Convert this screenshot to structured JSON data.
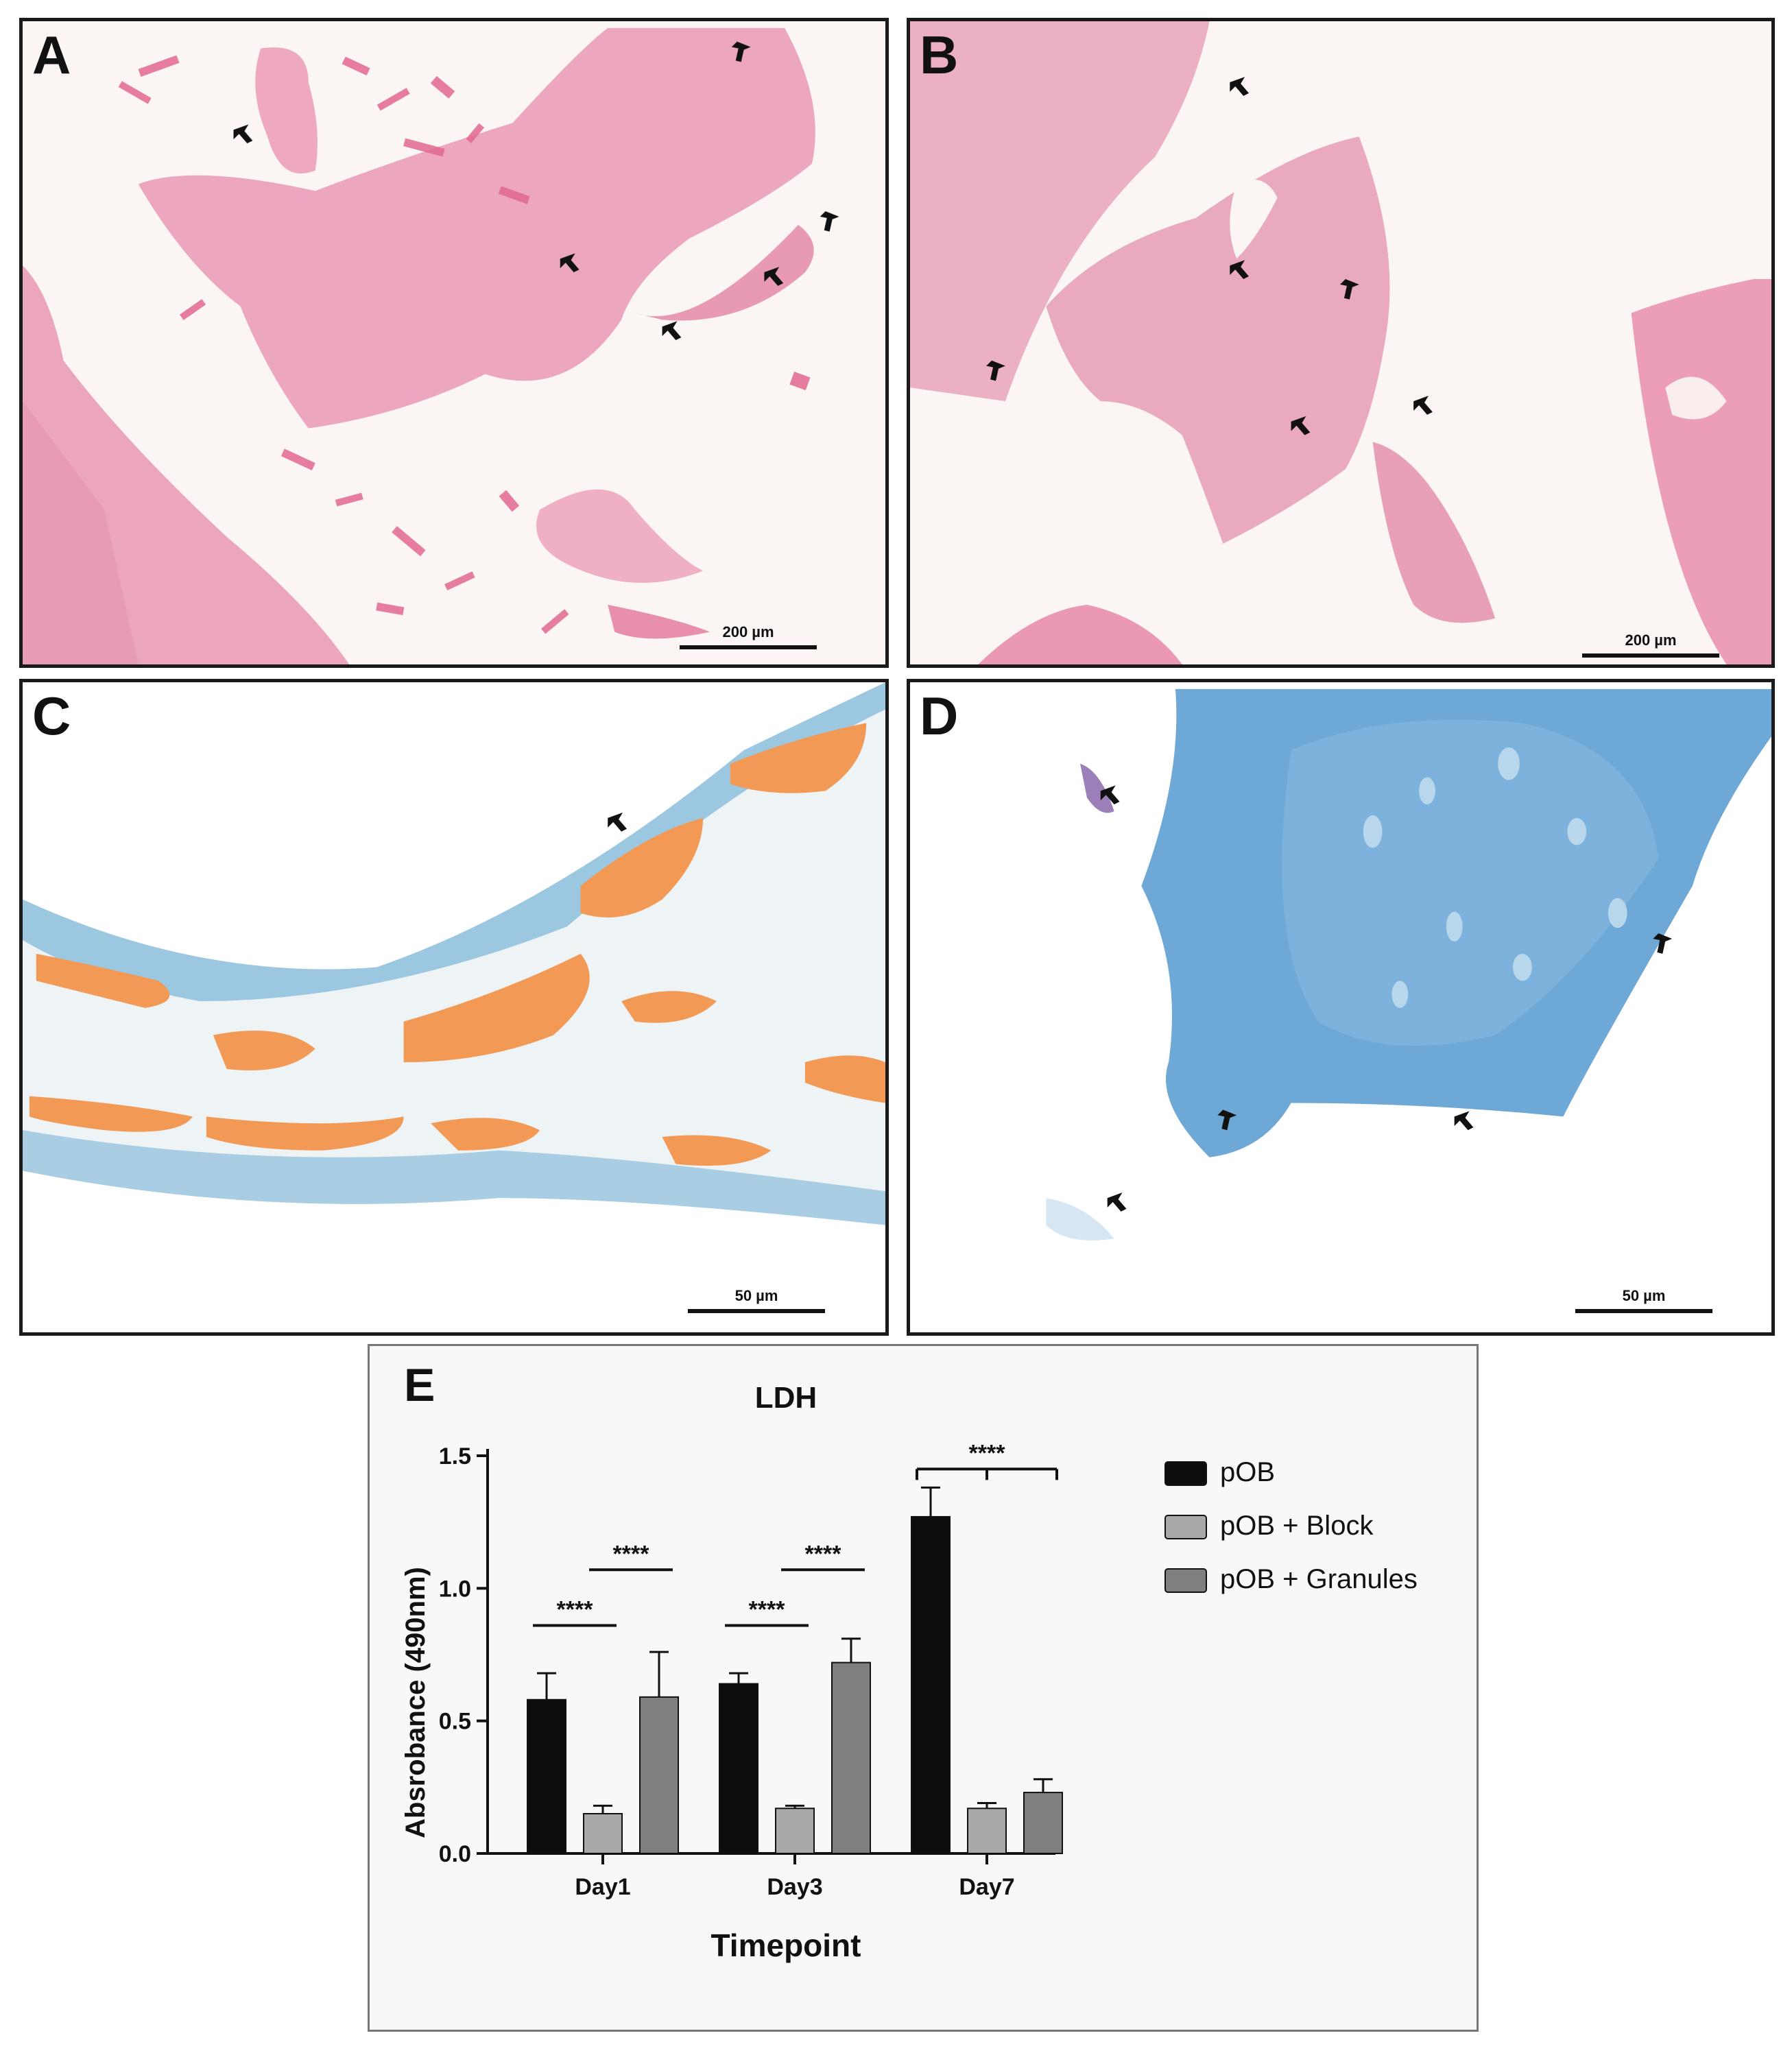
{
  "panels": {
    "a": {
      "label": "A",
      "scale": "200 µm"
    },
    "b": {
      "label": "B",
      "scale": "200 µm"
    },
    "c": {
      "label": "C",
      "scale": "50 µm"
    },
    "d": {
      "label": "D",
      "scale": "50 µm"
    },
    "e": {
      "label": "E"
    }
  },
  "colors": {
    "he_pink": "#e79bb4",
    "he_bg": "#fbf6f4",
    "alcian_blue": "#6aa8d6",
    "orange_stain": "#f29a55",
    "pOB": "#0d0d0d",
    "pOB_block": "#a9a9a9",
    "pOB_granules": "#7f7f7f"
  },
  "chart_data": {
    "type": "bar",
    "title": "LDH",
    "xlabel": "Timepoint",
    "ylabel": "Absrobance (490nm)",
    "categories": [
      "Day1",
      "Day3",
      "Day7"
    ],
    "ylim": [
      0.0,
      1.5
    ],
    "yticks": [
      "0.0",
      "0.5",
      "1.0",
      "1.5"
    ],
    "grid": false,
    "legend_position": "right",
    "series": [
      {
        "name": "pOB",
        "values": [
          0.58,
          0.64,
          1.27
        ],
        "errors": [
          0.1,
          0.04,
          0.11
        ]
      },
      {
        "name": "pOB + Block",
        "values": [
          0.15,
          0.17,
          0.17
        ],
        "errors": [
          0.03,
          0.01,
          0.02
        ]
      },
      {
        "name": "pOB + Granules",
        "values": [
          0.59,
          0.72,
          0.23
        ],
        "errors": [
          0.17,
          0.09,
          0.05
        ]
      }
    ],
    "significance": [
      {
        "category": "Day1",
        "from": 0,
        "to": 1,
        "label": "****"
      },
      {
        "category": "Day1",
        "from": 1,
        "to": 2,
        "label": "****"
      },
      {
        "category": "Day3",
        "from": 0,
        "to": 1,
        "label": "****"
      },
      {
        "category": "Day3",
        "from": 1,
        "to": 2,
        "label": "****"
      },
      {
        "category": "Day7",
        "from": 0,
        "to": 2,
        "label": "****"
      }
    ]
  }
}
